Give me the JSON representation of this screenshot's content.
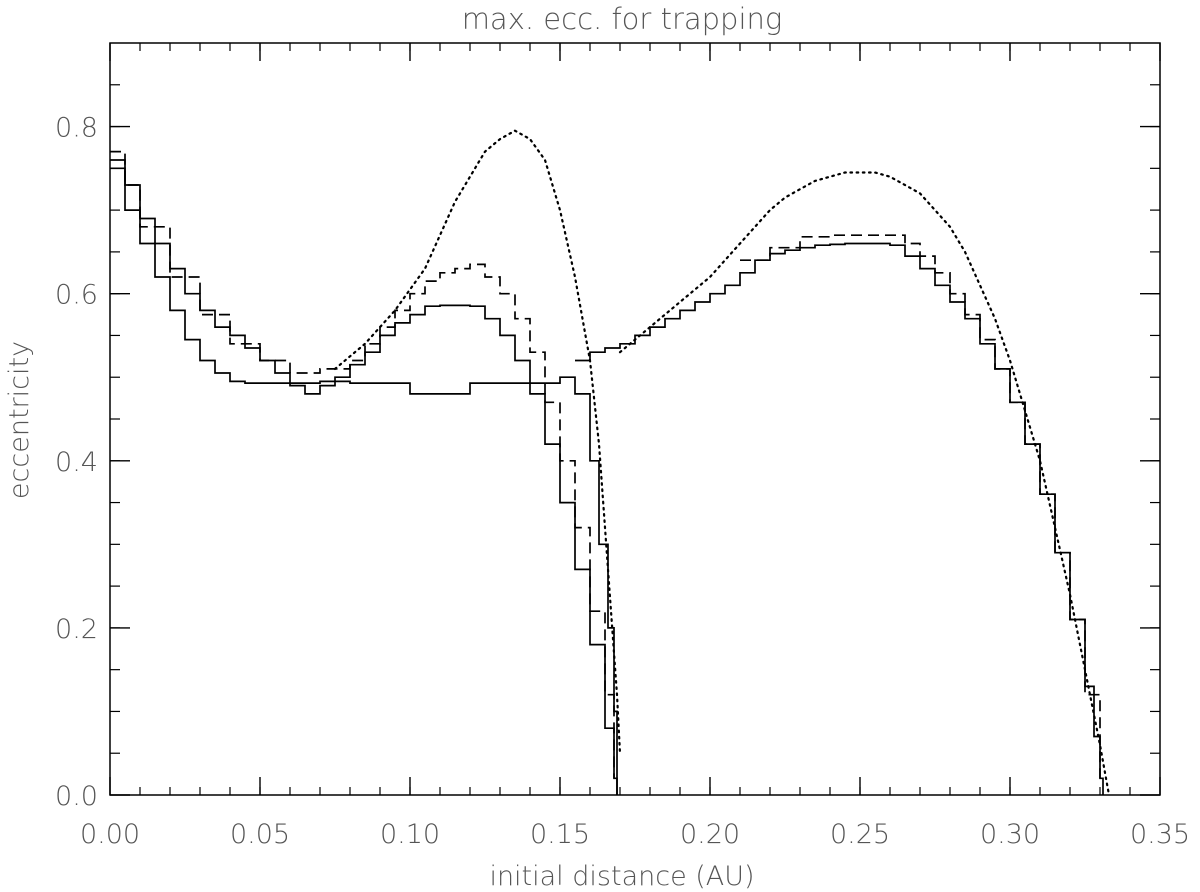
{
  "chart_data": {
    "type": "line",
    "title": "max. ecc. for trapping",
    "xlabel": "initial distance (AU)",
    "ylabel": "eccentricity",
    "xlim": [
      0.0,
      0.35
    ],
    "ylim": [
      0.0,
      0.9
    ],
    "x_ticks": [
      "0.00",
      "0.05",
      "0.10",
      "0.15",
      "0.20",
      "0.25",
      "0.30",
      "0.35"
    ],
    "y_ticks": [
      "0.0",
      "0.2",
      "0.4",
      "0.6",
      "0.8"
    ],
    "x_tick_values": [
      0.0,
      0.05,
      0.1,
      0.15,
      0.2,
      0.25,
      0.3,
      0.35
    ],
    "y_tick_values": [
      0.0,
      0.2,
      0.4,
      0.6,
      0.8
    ],
    "x_minor_step": 0.01,
    "y_minor_step": 0.05,
    "grid": false,
    "legend": "none",
    "line_color": "#000000",
    "series": [
      {
        "style": "solid",
        "step": true,
        "x": [
          0.0,
          0.005,
          0.01,
          0.015,
          0.02,
          0.025,
          0.03,
          0.035,
          0.04,
          0.045,
          0.05,
          0.055,
          0.06,
          0.07,
          0.08,
          0.09,
          0.1,
          0.11,
          0.12,
          0.13,
          0.14,
          0.15,
          0.155,
          0.16,
          0.163,
          0.166,
          0.168,
          0.169
        ],
        "y": [
          0.75,
          0.7,
          0.66,
          0.62,
          0.58,
          0.545,
          0.52,
          0.505,
          0.495,
          0.493,
          0.493,
          0.493,
          0.493,
          0.495,
          0.493,
          0.493,
          0.48,
          0.48,
          0.493,
          0.493,
          0.493,
          0.5,
          0.48,
          0.4,
          0.3,
          0.2,
          0.1,
          0.0
        ]
      },
      {
        "style": "solid",
        "step": true,
        "x": [
          0.0,
          0.005,
          0.01,
          0.015,
          0.02,
          0.025,
          0.03,
          0.035,
          0.04,
          0.045,
          0.05,
          0.055,
          0.06,
          0.065,
          0.07,
          0.075,
          0.08,
          0.085,
          0.09,
          0.095,
          0.1,
          0.105,
          0.11,
          0.115,
          0.12,
          0.125,
          0.13,
          0.135,
          0.14,
          0.145,
          0.15,
          0.155,
          0.16,
          0.165,
          0.168,
          0.169
        ],
        "y": [
          0.76,
          0.73,
          0.69,
          0.66,
          0.63,
          0.6,
          0.58,
          0.56,
          0.55,
          0.535,
          0.52,
          0.505,
          0.49,
          0.48,
          0.49,
          0.5,
          0.515,
          0.53,
          0.55,
          0.565,
          0.575,
          0.585,
          0.586,
          0.586,
          0.585,
          0.57,
          0.55,
          0.52,
          0.48,
          0.42,
          0.35,
          0.27,
          0.18,
          0.08,
          0.02,
          0.0
        ]
      },
      {
        "style": "dashed",
        "step": true,
        "x": [
          0.0,
          0.005,
          0.01,
          0.02,
          0.03,
          0.04,
          0.05,
          0.06,
          0.07,
          0.08,
          0.085,
          0.09,
          0.095,
          0.1,
          0.105,
          0.11,
          0.115,
          0.12,
          0.125,
          0.13,
          0.135,
          0.14,
          0.145,
          0.15,
          0.155,
          0.16,
          0.165,
          0.168
        ],
        "y": [
          0.77,
          0.73,
          0.68,
          0.62,
          0.575,
          0.54,
          0.52,
          0.505,
          0.51,
          0.52,
          0.54,
          0.56,
          0.58,
          0.6,
          0.615,
          0.625,
          0.63,
          0.635,
          0.62,
          0.6,
          0.57,
          0.53,
          0.47,
          0.4,
          0.32,
          0.22,
          0.12,
          0.02
        ]
      },
      {
        "style": "dotted",
        "step": false,
        "x": [
          0.075,
          0.085,
          0.095,
          0.105,
          0.11,
          0.115,
          0.12,
          0.125,
          0.13,
          0.135,
          0.14,
          0.145,
          0.15,
          0.155,
          0.16,
          0.163,
          0.165,
          0.167,
          0.169,
          0.17
        ],
        "y": [
          0.51,
          0.54,
          0.58,
          0.63,
          0.67,
          0.71,
          0.74,
          0.77,
          0.785,
          0.795,
          0.785,
          0.76,
          0.7,
          0.62,
          0.52,
          0.42,
          0.32,
          0.22,
          0.12,
          0.05
        ]
      },
      {
        "style": "solid",
        "step": true,
        "x": [
          0.155,
          0.16,
          0.165,
          0.17,
          0.175,
          0.18,
          0.185,
          0.19,
          0.195,
          0.2,
          0.205,
          0.21,
          0.215,
          0.22,
          0.225,
          0.23,
          0.235,
          0.24,
          0.245,
          0.25,
          0.255,
          0.26,
          0.265,
          0.27,
          0.275,
          0.28,
          0.285,
          0.29,
          0.295,
          0.3,
          0.305,
          0.31,
          0.315,
          0.32,
          0.325,
          0.328,
          0.33,
          0.331
        ],
        "y": [
          0.52,
          0.53,
          0.535,
          0.54,
          0.55,
          0.56,
          0.57,
          0.58,
          0.59,
          0.6,
          0.61,
          0.625,
          0.64,
          0.648,
          0.652,
          0.655,
          0.658,
          0.659,
          0.66,
          0.66,
          0.66,
          0.658,
          0.645,
          0.63,
          0.61,
          0.59,
          0.57,
          0.54,
          0.51,
          0.47,
          0.42,
          0.36,
          0.29,
          0.21,
          0.13,
          0.07,
          0.02,
          0.0
        ]
      },
      {
        "style": "dashed",
        "step": true,
        "x": [
          0.21,
          0.22,
          0.23,
          0.24,
          0.25,
          0.26,
          0.265,
          0.27,
          0.275,
          0.28,
          0.285,
          0.29,
          0.295,
          0.3,
          0.305,
          0.31,
          0.315,
          0.32,
          0.325,
          0.33
        ],
        "y": [
          0.64,
          0.655,
          0.668,
          0.67,
          0.67,
          0.67,
          0.66,
          0.645,
          0.625,
          0.6,
          0.575,
          0.545,
          0.51,
          0.47,
          0.42,
          0.36,
          0.29,
          0.21,
          0.12,
          0.02
        ]
      },
      {
        "style": "dotted",
        "step": false,
        "x": [
          0.17,
          0.18,
          0.19,
          0.2,
          0.205,
          0.21,
          0.215,
          0.22,
          0.225,
          0.23,
          0.235,
          0.24,
          0.245,
          0.25,
          0.255,
          0.26,
          0.265,
          0.27,
          0.275,
          0.28,
          0.285,
          0.29,
          0.295,
          0.3,
          0.305,
          0.31,
          0.315,
          0.32,
          0.325,
          0.33,
          0.333
        ],
        "y": [
          0.53,
          0.56,
          0.59,
          0.62,
          0.64,
          0.66,
          0.68,
          0.7,
          0.715,
          0.725,
          0.735,
          0.74,
          0.745,
          0.745,
          0.745,
          0.74,
          0.73,
          0.72,
          0.7,
          0.68,
          0.65,
          0.61,
          0.57,
          0.52,
          0.46,
          0.4,
          0.32,
          0.24,
          0.15,
          0.06,
          0.0
        ]
      }
    ]
  }
}
